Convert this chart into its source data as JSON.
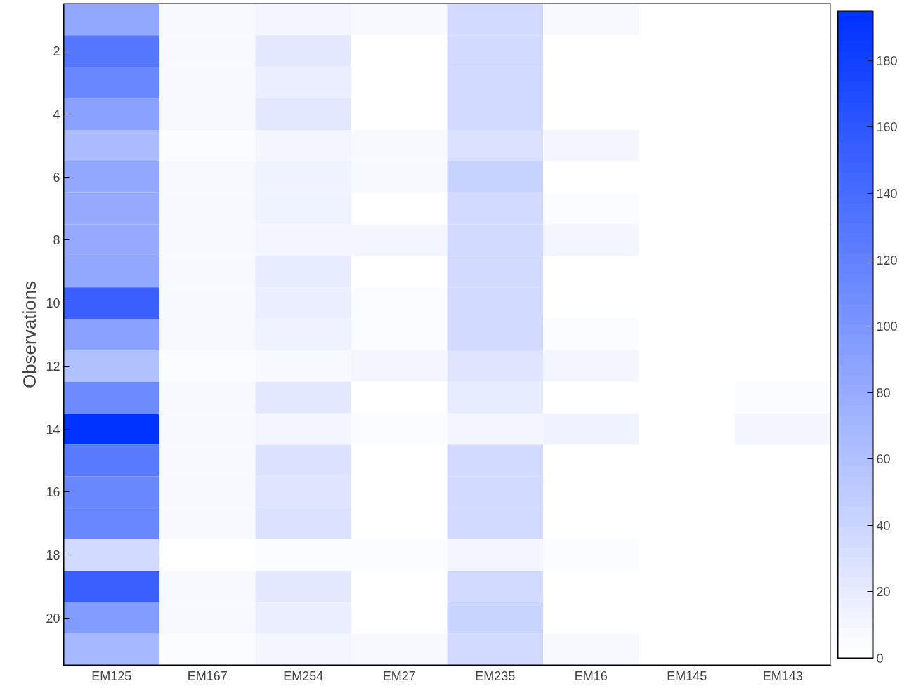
{
  "chart_data": {
    "type": "heatmap",
    "ylabel": "Observations",
    "categories": [
      "EM125",
      "EM167",
      "EM254",
      "EM27",
      "EM235",
      "EM16",
      "EM145",
      "EM143"
    ],
    "ylim": [
      21.5,
      0.5
    ],
    "yticks": [
      2,
      4,
      6,
      8,
      10,
      12,
      14,
      16,
      18,
      20
    ],
    "clim": [
      0,
      195
    ],
    "cticks": [
      0,
      20,
      40,
      60,
      80,
      100,
      120,
      140,
      160,
      180
    ],
    "cells": [
      [
        85,
        8,
        10,
        8,
        35,
        8,
        3,
        0
      ],
      [
        130,
        8,
        22,
        2,
        35,
        0,
        0,
        0
      ],
      [
        115,
        8,
        18,
        3,
        35,
        3,
        2,
        0
      ],
      [
        90,
        8,
        22,
        3,
        35,
        0,
        0,
        0
      ],
      [
        65,
        4,
        10,
        8,
        30,
        12,
        3,
        2
      ],
      [
        85,
        8,
        15,
        8,
        45,
        2,
        0,
        0
      ],
      [
        80,
        8,
        15,
        3,
        35,
        4,
        2,
        0
      ],
      [
        80,
        8,
        10,
        12,
        35,
        10,
        2,
        0
      ],
      [
        85,
        8,
        20,
        2,
        35,
        0,
        0,
        0
      ],
      [
        150,
        8,
        18,
        4,
        35,
        0,
        0,
        0
      ],
      [
        90,
        8,
        15,
        6,
        35,
        4,
        0,
        0
      ],
      [
        60,
        5,
        8,
        10,
        25,
        10,
        2,
        2
      ],
      [
        110,
        8,
        22,
        0,
        20,
        3,
        2,
        5
      ],
      [
        195,
        8,
        12,
        4,
        10,
        15,
        2,
        10
      ],
      [
        125,
        8,
        28,
        0,
        35,
        0,
        2,
        0
      ],
      [
        115,
        8,
        25,
        0,
        35,
        0,
        2,
        0
      ],
      [
        115,
        8,
        30,
        0,
        35,
        0,
        2,
        0
      ],
      [
        35,
        3,
        5,
        4,
        10,
        5,
        0,
        0
      ],
      [
        150,
        8,
        22,
        0,
        35,
        0,
        2,
        0
      ],
      [
        95,
        8,
        18,
        3,
        40,
        2,
        2,
        0
      ],
      [
        70,
        5,
        10,
        8,
        35,
        8,
        2,
        0
      ]
    ]
  }
}
